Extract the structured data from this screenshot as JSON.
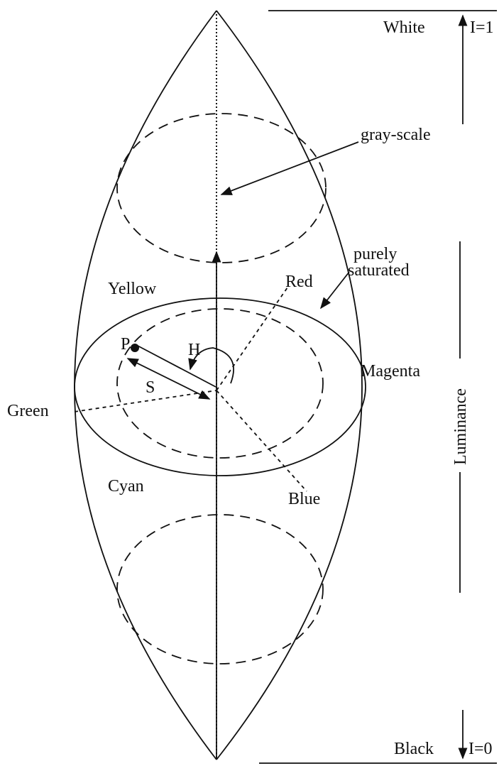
{
  "labels": {
    "white": "White",
    "i1": "I=1",
    "grayscale": "gray-scale",
    "purely": "purely",
    "saturated": "saturated",
    "yellow": "Yellow",
    "red": "Red",
    "p": "P",
    "h": "H",
    "s": "S",
    "magenta": "Magenta",
    "green": "Green",
    "cyan": "Cyan",
    "blue": "Blue",
    "luminance": "Luminance",
    "black": "Black",
    "i0": "I=0"
  }
}
